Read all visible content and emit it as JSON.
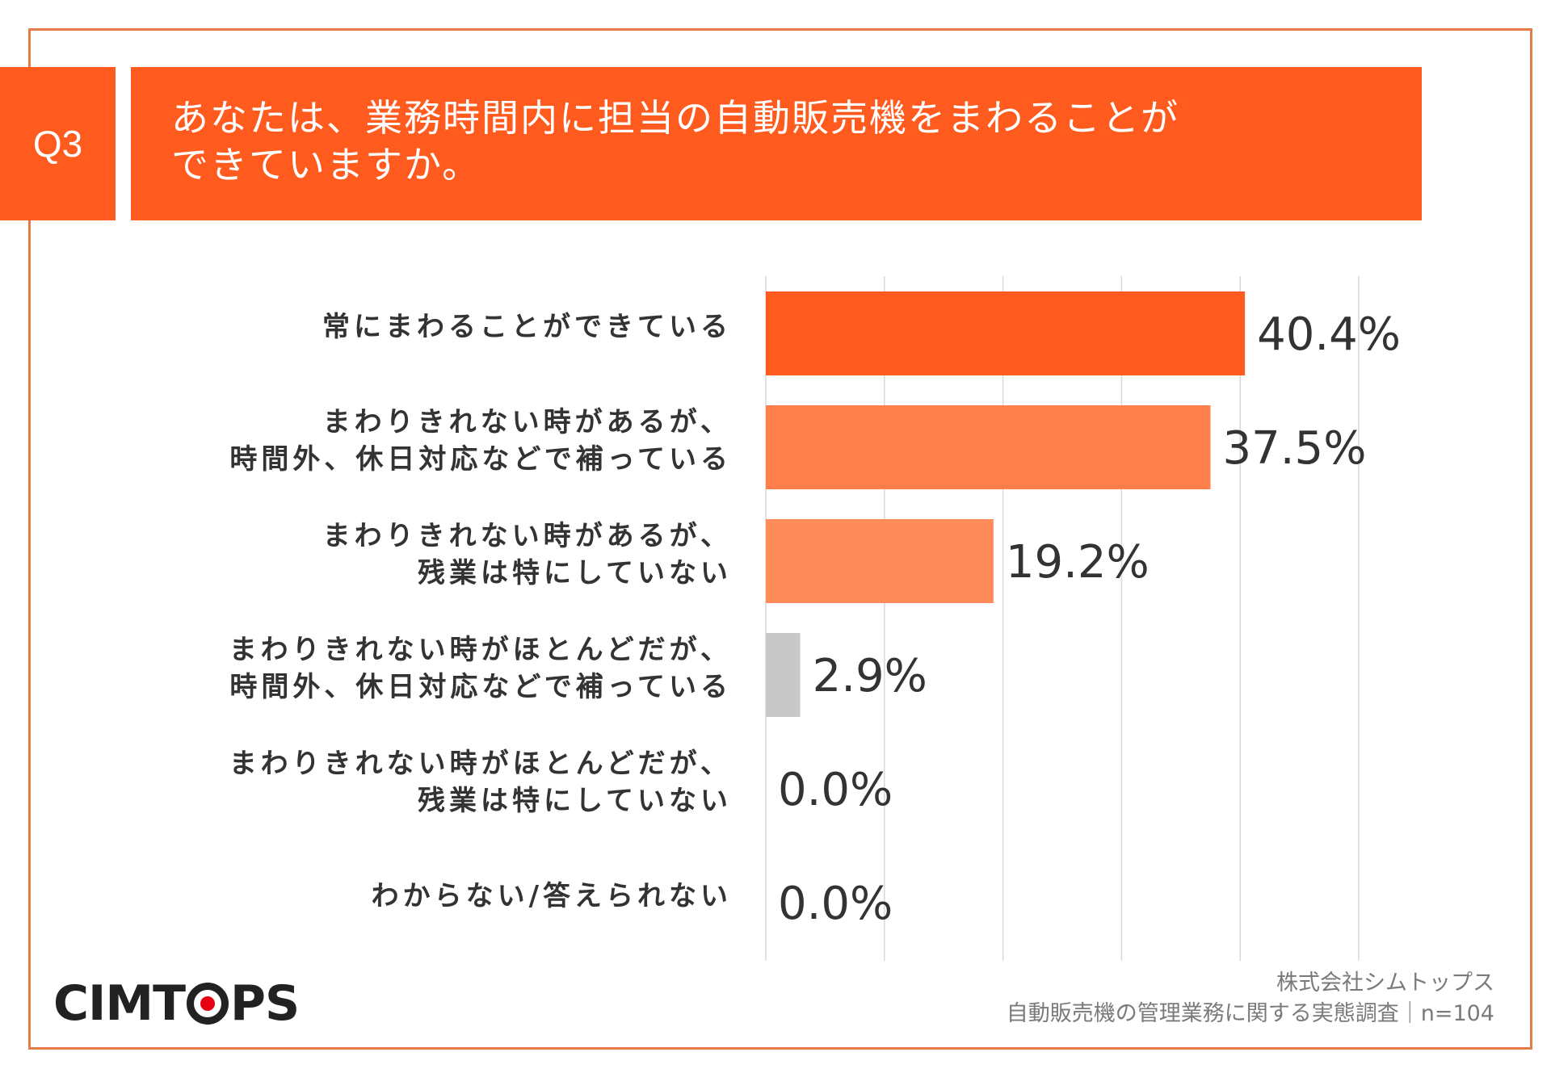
{
  "question": {
    "number": "Q3",
    "title_lines": [
      "あなたは、業務時間内に担当の自動販売機をまわることが",
      "できていますか。"
    ]
  },
  "chart_data": {
    "type": "bar",
    "orientation": "horizontal",
    "categories": [
      [
        "常にまわることができている"
      ],
      [
        "まわりきれない時があるが、",
        "時間外、休日対応などで補っている"
      ],
      [
        "まわりきれない時があるが、",
        "残業は特にしていない"
      ],
      [
        "まわりきれない時がほとんどだが、",
        "時間外、休日対応などで補っている"
      ],
      [
        "まわりきれない時がほとんどだが、",
        "残業は特にしていない"
      ],
      [
        "わからない/答えられない"
      ]
    ],
    "values": [
      40.4,
      37.5,
      19.2,
      2.9,
      0.0,
      0.0
    ],
    "value_labels": [
      "40.4%",
      "37.5%",
      "19.2%",
      "2.9%",
      "0.0%",
      "0.0%"
    ],
    "bar_colors": [
      "#ff5b1f",
      "#ff7f4c",
      "#ff8b5a",
      "#c8c8c8",
      "#c8c8c8",
      "#c8c8c8"
    ],
    "xlim": [
      0,
      50
    ],
    "grid": true,
    "gridline_step": 10,
    "unit": "%"
  },
  "footer": {
    "company": "株式会社シムトップス",
    "survey": "自動販売機の管理業務に関する実態調査｜n=104"
  },
  "logo": {
    "text_before": "CIMT",
    "text_after": "PS"
  },
  "colors": {
    "accent": "#ff5b1f",
    "frame": "#e57b45",
    "text": "#333333"
  }
}
